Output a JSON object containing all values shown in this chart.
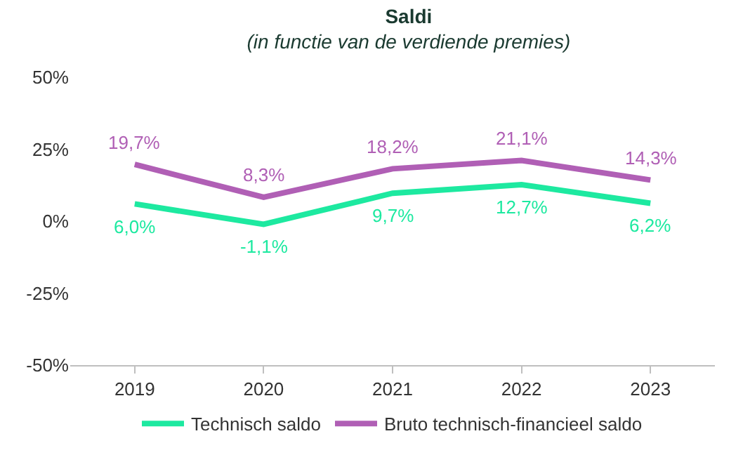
{
  "chart_data": {
    "type": "line",
    "title": "Saldi",
    "subtitle": "(in functie van de verdiende premies)",
    "categories": [
      "2019",
      "2020",
      "2021",
      "2022",
      "2023"
    ],
    "series": [
      {
        "name": "Technisch saldo",
        "color": "#1de9a0",
        "values": [
          6.0,
          -1.1,
          9.7,
          12.7,
          6.2
        ],
        "value_labels": [
          "6,0%",
          "-1,1%",
          "9,7%",
          "12,7%",
          "6,2%"
        ]
      },
      {
        "name": "Bruto technisch-financieel saldo",
        "color": "#b05fb5",
        "values": [
          19.7,
          8.3,
          18.2,
          21.1,
          14.3
        ],
        "value_labels": [
          "19,7%",
          "8,3%",
          "18,2%",
          "21,1%",
          "14,3%"
        ]
      }
    ],
    "ylim": [
      -50,
      50
    ],
    "yticks": [
      {
        "value": -50,
        "label": "-50%"
      },
      {
        "value": -25,
        "label": "-25%"
      },
      {
        "value": 0,
        "label": "0%"
      },
      {
        "value": 25,
        "label": "25%"
      },
      {
        "value": 50,
        "label": "50%"
      }
    ],
    "legend": "bottom",
    "marker": "none",
    "line_style": "solid"
  }
}
